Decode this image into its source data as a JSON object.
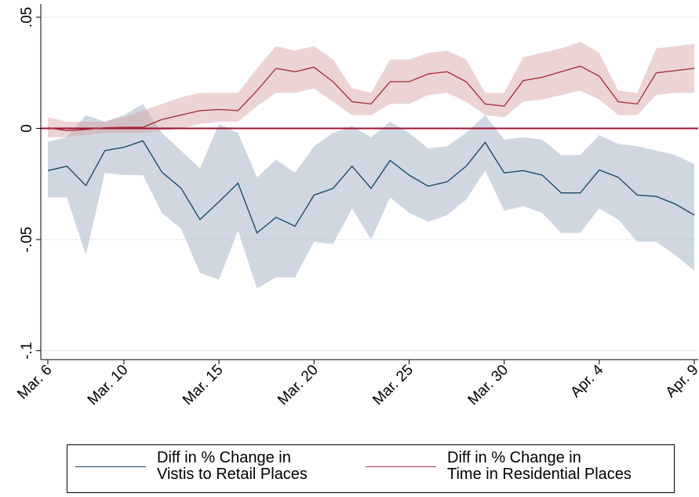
{
  "chart_data": {
    "type": "line",
    "categories": [
      "Mar. 6",
      null,
      null,
      null,
      "Mar. 10",
      null,
      null,
      null,
      null,
      "Mar. 15",
      null,
      null,
      null,
      null,
      "Mar. 20",
      null,
      null,
      null,
      null,
      "Mar. 25",
      null,
      null,
      null,
      null,
      "Mar. 30",
      null,
      null,
      null,
      null,
      "Apr. 4",
      null,
      null,
      null,
      null,
      "Apr. 9"
    ],
    "ylim": [
      -0.104,
      0.056
    ],
    "yticks": [
      {
        "value": 0.05,
        "label": ".05"
      },
      0,
      {
        "value": -0.05,
        "label": "-.05"
      },
      {
        "value": -0.1,
        "label": "-.1"
      }
    ],
    "grid": true,
    "reference_line": {
      "value": 0,
      "color": "#a0102e"
    },
    "series": [
      {
        "name": "Diff  in % Change in\nVistis to Retail Places",
        "color": "#1e4a6b",
        "band_color": "rgba(170,182,200,0.55)",
        "values": [
          -0.019,
          -0.017,
          -0.0257,
          -0.01,
          -0.0085,
          -0.0056,
          -0.0197,
          -0.0268,
          -0.041,
          -0.033,
          -0.0246,
          -0.047,
          -0.04,
          -0.044,
          -0.03,
          -0.027,
          -0.017,
          -0.027,
          -0.0144,
          -0.021,
          -0.026,
          -0.024,
          -0.017,
          -0.0063,
          -0.02,
          -0.019,
          -0.021,
          -0.029,
          -0.029,
          -0.0187,
          -0.022,
          -0.03,
          -0.0306,
          -0.034,
          -0.039
        ],
        "upper": [
          -0.006,
          -0.004,
          0.006,
          0.003,
          0.006,
          0.011,
          -0.002,
          -0.01,
          -0.018,
          0.002,
          -0.002,
          -0.022,
          -0.014,
          -0.02,
          -0.008,
          -0.002,
          0.001,
          -0.004,
          0.003,
          -0.002,
          -0.009,
          -0.008,
          -0.002,
          0.006,
          -0.005,
          -0.004,
          -0.005,
          -0.012,
          -0.012,
          -0.003,
          -0.007,
          -0.008,
          -0.01,
          -0.012,
          -0.016
        ],
        "lower": [
          -0.031,
          -0.031,
          -0.057,
          -0.02,
          -0.021,
          -0.021,
          -0.038,
          -0.045,
          -0.065,
          -0.068,
          -0.046,
          -0.072,
          -0.067,
          -0.067,
          -0.051,
          -0.052,
          -0.036,
          -0.05,
          -0.031,
          -0.038,
          -0.042,
          -0.039,
          -0.032,
          -0.019,
          -0.037,
          -0.035,
          -0.038,
          -0.047,
          -0.047,
          -0.036,
          -0.041,
          -0.051,
          -0.051,
          -0.057,
          -0.064
        ]
      },
      {
        "name": "Diff in % Change in\nTime in Residential Places",
        "color": "#a83340",
        "band_color": "rgba(215,160,160,0.45)",
        "values": [
          0.0003,
          -0.001,
          -0.0005,
          0.0003,
          0.0005,
          0.0005,
          0.004,
          0.006,
          0.008,
          0.0085,
          0.008,
          0.017,
          0.027,
          0.0255,
          0.0275,
          0.021,
          0.012,
          0.011,
          0.021,
          0.021,
          0.0245,
          0.0255,
          0.021,
          0.011,
          0.01,
          0.0215,
          0.023,
          0.0255,
          0.028,
          0.0235,
          0.012,
          0.011,
          0.025,
          0.026,
          0.027
        ],
        "upper": [
          0.005,
          0.003,
          0.003,
          0.003,
          0.005,
          0.008,
          0.011,
          0.014,
          0.016,
          0.016,
          0.016,
          0.027,
          0.037,
          0.035,
          0.037,
          0.031,
          0.018,
          0.016,
          0.031,
          0.031,
          0.034,
          0.035,
          0.031,
          0.016,
          0.016,
          0.032,
          0.034,
          0.036,
          0.039,
          0.034,
          0.017,
          0.016,
          0.036,
          0.037,
          0.038
        ],
        "lower": [
          -0.004,
          -0.004,
          -0.003,
          -0.002,
          -0.002,
          -0.002,
          -0.001,
          0.0,
          0.002,
          0.003,
          0.003,
          0.01,
          0.016,
          0.016,
          0.018,
          0.012,
          0.006,
          0.006,
          0.011,
          0.011,
          0.015,
          0.016,
          0.012,
          0.006,
          0.005,
          0.012,
          0.013,
          0.015,
          0.017,
          0.013,
          0.006,
          0.006,
          0.015,
          0.016,
          0.016
        ]
      }
    ]
  }
}
